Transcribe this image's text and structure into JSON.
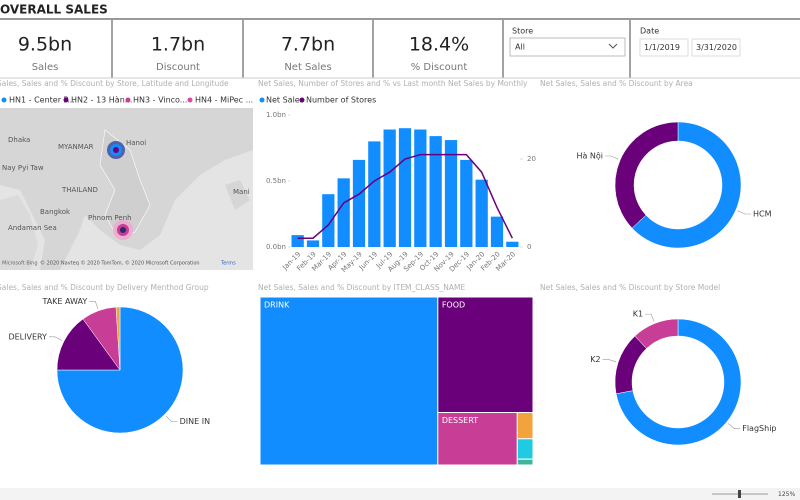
{
  "header": {
    "title": "OVERALL SALES"
  },
  "kpis": [
    {
      "value": "9.5bn",
      "label": "Sales"
    },
    {
      "value": "1.7bn",
      "label": "Discount"
    },
    {
      "value": "7.7bn",
      "label": "Net Sales"
    },
    {
      "value": "18.4%",
      "label": "% Discount"
    }
  ],
  "slicers": {
    "store": {
      "label": "Store",
      "value": "All"
    },
    "date": {
      "label": "Date",
      "start": "1/1/2019",
      "end": "3/31/2020"
    }
  },
  "map": {
    "title": "Sales, Sales and % Discount by Store, Latitude and Longitude",
    "legend": [
      "HN1 - Center P...",
      "HN2 - 13 Hàn...",
      "HN3 - Vinco...",
      "HN4 - MiPec ..."
    ],
    "labels": [
      "Dhaka",
      "MYANMAR",
      "Nay Pyi Taw",
      "THAILAND",
      "Bangkok",
      "Andaman Sea",
      "Hanoi",
      "Phnom Penh",
      "Mani"
    ],
    "brand": "Microsoft Bing",
    "attribution": "© 2020 Navteq © 2020 TomTom, © 2020 Microsoft Corporation",
    "terms": "Terms"
  },
  "chart_data": [
    {
      "type": "combo",
      "title": "Net Sales, Number of Stores and % vs Last month Net Sales by Monthly",
      "categories": [
        "Jan-19",
        "Feb-19",
        "Mar-19",
        "Apr-19",
        "May-19",
        "Jun-19",
        "Jul-19",
        "Aug-19",
        "Sep-19",
        "Oct-19",
        "Nov-19",
        "Dec-19",
        "Jan-20",
        "Feb-20",
        "Mar-20"
      ],
      "series": [
        {
          "name": "Net Sales",
          "color": "#118dff",
          "values": [
            0.09,
            0.05,
            0.4,
            0.52,
            0.66,
            0.8,
            0.89,
            0.9,
            0.89,
            0.84,
            0.81,
            0.66,
            0.51,
            0.23,
            0.04
          ]
        },
        {
          "name": "Number of Stores",
          "color": "#6b007b",
          "axis": "y2",
          "values": [
            2,
            2,
            5,
            10,
            12,
            15,
            17,
            20,
            21,
            21,
            21,
            21,
            17,
            9,
            2
          ]
        }
      ],
      "ylim": [
        0,
        1.0
      ],
      "yticks": [
        {
          "value": 0,
          "label": "0.0bn"
        },
        {
          "value": 0.5,
          "label": "0.5bn"
        },
        {
          "value": 1.0,
          "label": "1.0bn"
        }
      ],
      "y2lim": [
        0,
        30
      ],
      "y2ticks": [
        0,
        20
      ],
      "legend": "top-left"
    },
    {
      "type": "donut",
      "title": "Net Sales, Sales and % Discount by Area",
      "categories": [
        "HCM",
        "Hà Nội"
      ],
      "values": [
        63,
        37
      ],
      "colors": [
        "#118dff",
        "#6b007b"
      ]
    },
    {
      "type": "pie",
      "title": "Sales, Sales and % Discount by Delivery Menthod Group",
      "categories": [
        "DINE IN",
        "DELIVERY",
        "TAKE AWAY",
        null
      ],
      "values": [
        75,
        15,
        9,
        1
      ],
      "colors": [
        "#118dff",
        "#6b007b",
        "#c83d95",
        "#f2a33c"
      ]
    },
    {
      "type": "treemap",
      "title": "Net Sales, Sales and % Discount by ITEM_CLASS_NAME",
      "categories": [
        "DRINK",
        "FOOD",
        "DESSERT",
        null,
        null,
        null
      ],
      "values": [
        65.2,
        24.0,
        9.1,
        0.9,
        0.7,
        0.2
      ],
      "colors": [
        "#118dff",
        "#6b007b",
        "#c83d95",
        "#f2a33c",
        "#1ecbe1",
        "#3fb59c"
      ]
    },
    {
      "type": "donut",
      "title": "Net Sales, Sales and % Discount by Store Model",
      "categories": [
        "FlagShip",
        "K2",
        "K1"
      ],
      "values": [
        72,
        16,
        12
      ],
      "colors": [
        "#118dff",
        "#6b007b",
        "#c83d95"
      ]
    }
  ],
  "status": {
    "zoom": "125%"
  }
}
